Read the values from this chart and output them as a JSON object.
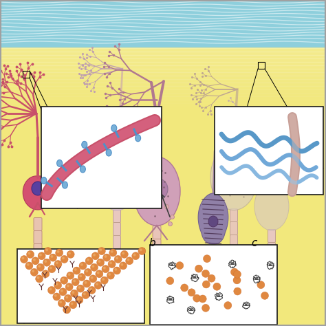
{
  "bg_yellow": "#f2e87c",
  "bg_yellow2": "#ede878",
  "top_band": "#8ecfdc",
  "top_band_line": "#b8e4ee",
  "neuron_a_color": "#c8506a",
  "neuron_b_fill": "#d4a0b8",
  "neuron_b_dark": "#b07898",
  "neuron_b2_fill": "#c898b0",
  "neuron_c_fill": "#c0a8bc",
  "neuron_c_dark": "#907090",
  "soma_a_fill": "#d45070",
  "soma_a_dark": "#b03858",
  "nucleus_a": "#5840a0",
  "soma_b_fill": "#c07898",
  "soma_b_dark": "#a06080",
  "nucleus_b": "#a070b0",
  "soma_b2_fill": "#d8b8c8",
  "soma_c_fill": "#b098b8",
  "soma_c_dark": "#806888",
  "nucleus_c": "#7060a0",
  "axon_fill": "#e8c8b8",
  "axon_edge": "#c09890",
  "spine_blue": "#5090c8",
  "spine_blue2": "#78b0d8",
  "mt_orange": "#e08840",
  "mt_orange2": "#d07030",
  "tau_dark": "#504040",
  "inset_bg": "#ffffff",
  "inset_border": "#1a1a1a",
  "label_color": "#1a1a1a",
  "figsize": [
    4.74,
    4.74
  ],
  "dpi": 100
}
